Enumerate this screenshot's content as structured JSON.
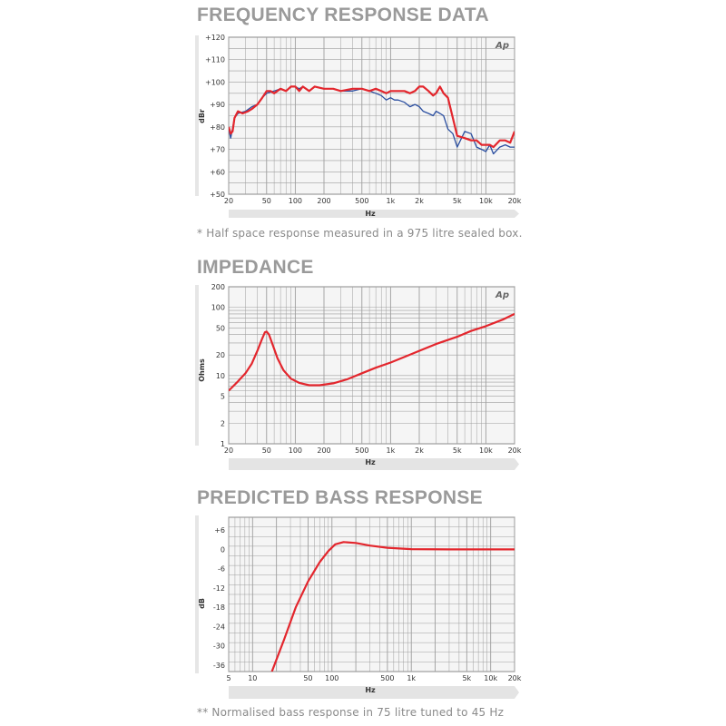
{
  "sections": [
    {
      "title": "FREQUENCY RESPONSE DATA",
      "note": "* Half space response measured in a 975 litre sealed box.",
      "logo": "Ap"
    },
    {
      "title": "IMPEDANCE",
      "note": "",
      "logo": "Ap"
    },
    {
      "title": "PREDICTED BASS RESPONSE",
      "note": "** Normalised bass response in 75 litre tuned to 45 Hz",
      "logo": ""
    }
  ],
  "colors": {
    "red": "#e3262d",
    "blue": "#2a4ea0",
    "grid": "#9e9e9e",
    "plot_bg": "#f5f5f5",
    "title": "#9a9a9a"
  },
  "chart_data": [
    {
      "type": "line",
      "title": "FREQUENCY RESPONSE DATA",
      "xlabel": "Hz",
      "ylabel": "dBr",
      "xscale": "log",
      "xlim": [
        20,
        20000
      ],
      "ylim": [
        50,
        120
      ],
      "xticks": [
        20,
        50,
        100,
        200,
        500,
        1000,
        2000,
        5000,
        10000,
        20000
      ],
      "xtick_labels": [
        "20",
        "50",
        "100",
        "200",
        "500",
        "1k",
        "2k",
        "5k",
        "10k",
        "20k"
      ],
      "yticks": [
        50,
        60,
        70,
        80,
        90,
        100,
        110,
        120
      ],
      "ytick_labels": [
        "+50",
        "+60",
        "+70",
        "+80",
        "+90",
        "+100",
        "+110",
        "+120"
      ],
      "grid": true,
      "series": [
        {
          "color": "#2a4ea0",
          "points": [
            [
              20,
              79
            ],
            [
              21,
              75
            ],
            [
              23,
              84
            ],
            [
              25,
              86
            ],
            [
              30,
              87
            ],
            [
              35,
              89
            ],
            [
              40,
              90
            ],
            [
              45,
              93
            ],
            [
              50,
              95
            ],
            [
              60,
              96
            ],
            [
              70,
              97
            ],
            [
              80,
              96
            ],
            [
              90,
              98
            ],
            [
              100,
              98
            ],
            [
              110,
              97
            ],
            [
              120,
              98
            ],
            [
              140,
              96
            ],
            [
              160,
              98
            ],
            [
              200,
              97
            ],
            [
              250,
              97
            ],
            [
              300,
              96
            ],
            [
              400,
              96
            ],
            [
              500,
              97
            ],
            [
              600,
              96
            ],
            [
              700,
              95
            ],
            [
              800,
              94
            ],
            [
              900,
              92
            ],
            [
              1000,
              93
            ],
            [
              1100,
              92
            ],
            [
              1200,
              92
            ],
            [
              1400,
              91
            ],
            [
              1600,
              89
            ],
            [
              1800,
              90
            ],
            [
              2000,
              89
            ],
            [
              2200,
              87
            ],
            [
              2500,
              86
            ],
            [
              2800,
              85
            ],
            [
              3000,
              87
            ],
            [
              3300,
              86
            ],
            [
              3600,
              85
            ],
            [
              4000,
              79
            ],
            [
              4500,
              77
            ],
            [
              5000,
              71
            ],
            [
              6000,
              78
            ],
            [
              7000,
              77
            ],
            [
              8000,
              71
            ],
            [
              9000,
              70
            ],
            [
              10000,
              69
            ],
            [
              11000,
              72
            ],
            [
              12000,
              68
            ],
            [
              14000,
              71
            ],
            [
              16000,
              72
            ],
            [
              18000,
              71
            ],
            [
              20000,
              71
            ]
          ]
        },
        {
          "color": "#e3262d",
          "points": [
            [
              20,
              80
            ],
            [
              21,
              77
            ],
            [
              22,
              78
            ],
            [
              23,
              84
            ],
            [
              25,
              87
            ],
            [
              28,
              86
            ],
            [
              32,
              87
            ],
            [
              35,
              88
            ],
            [
              40,
              90
            ],
            [
              45,
              93
            ],
            [
              50,
              96
            ],
            [
              55,
              96
            ],
            [
              60,
              95
            ],
            [
              70,
              97
            ],
            [
              80,
              96
            ],
            [
              90,
              98
            ],
            [
              100,
              98
            ],
            [
              110,
              96
            ],
            [
              120,
              98
            ],
            [
              140,
              96
            ],
            [
              160,
              98
            ],
            [
              200,
              97
            ],
            [
              250,
              97
            ],
            [
              300,
              96
            ],
            [
              400,
              97
            ],
            [
              500,
              97
            ],
            [
              600,
              96
            ],
            [
              700,
              97
            ],
            [
              800,
              96
            ],
            [
              900,
              95
            ],
            [
              1000,
              96
            ],
            [
              1200,
              96
            ],
            [
              1400,
              96
            ],
            [
              1600,
              95
            ],
            [
              1800,
              96
            ],
            [
              2000,
              98
            ],
            [
              2200,
              98
            ],
            [
              2500,
              96
            ],
            [
              2800,
              94
            ],
            [
              3000,
              95
            ],
            [
              3300,
              98
            ],
            [
              3600,
              95
            ],
            [
              4000,
              93
            ],
            [
              4500,
              84
            ],
            [
              5000,
              76
            ],
            [
              6000,
              75
            ],
            [
              7000,
              74
            ],
            [
              8000,
              74
            ],
            [
              9000,
              72
            ],
            [
              10000,
              72
            ],
            [
              11000,
              72
            ],
            [
              12000,
              71
            ],
            [
              14000,
              74
            ],
            [
              16000,
              74
            ],
            [
              18000,
              73
            ],
            [
              20000,
              78
            ]
          ]
        }
      ]
    },
    {
      "type": "line",
      "title": "IMPEDANCE",
      "xlabel": "Hz",
      "ylabel": "Ohms",
      "xscale": "log",
      "yscale": "log",
      "xlim": [
        20,
        20000
      ],
      "ylim": [
        1,
        200
      ],
      "xticks": [
        20,
        50,
        100,
        200,
        500,
        1000,
        2000,
        5000,
        10000,
        20000
      ],
      "xtick_labels": [
        "20",
        "50",
        "100",
        "200",
        "500",
        "1k",
        "2k",
        "5k",
        "10k",
        "20k"
      ],
      "yticks": [
        1,
        2,
        5,
        10,
        20,
        50,
        100,
        200
      ],
      "ytick_labels": [
        "1",
        "2",
        "5",
        "10",
        "20",
        "50",
        "100",
        "200"
      ],
      "grid": true,
      "series": [
        {
          "color": "#e3262d",
          "points": [
            [
              20,
              6
            ],
            [
              25,
              8.2
            ],
            [
              30,
              10.8
            ],
            [
              35,
              15
            ],
            [
              40,
              23
            ],
            [
              45,
              35
            ],
            [
              48,
              43
            ],
            [
              50,
              44
            ],
            [
              53,
              40
            ],
            [
              58,
              28
            ],
            [
              65,
              18
            ],
            [
              75,
              12
            ],
            [
              90,
              9
            ],
            [
              110,
              7.8
            ],
            [
              140,
              7.2
            ],
            [
              180,
              7.2
            ],
            [
              250,
              7.7
            ],
            [
              350,
              8.8
            ],
            [
              500,
              10.8
            ],
            [
              700,
              13
            ],
            [
              1000,
              15.5
            ],
            [
              1500,
              19.5
            ],
            [
              2000,
              23
            ],
            [
              3000,
              29
            ],
            [
              5000,
              37
            ],
            [
              7000,
              45
            ],
            [
              10000,
              53
            ],
            [
              15000,
              66
            ],
            [
              20000,
              80
            ]
          ]
        }
      ]
    },
    {
      "type": "line",
      "title": "PREDICTED BASS RESPONSE",
      "xlabel": "Hz",
      "ylabel": "dB",
      "xscale": "log",
      "xlim": [
        5,
        20000
      ],
      "ylim": [
        -38,
        10
      ],
      "xticks": [
        5,
        10,
        50,
        100,
        500,
        1000,
        5000,
        10000,
        20000
      ],
      "xtick_labels": [
        "5",
        "10",
        "50",
        "100",
        "500",
        "1k",
        "5k",
        "10k",
        "20k"
      ],
      "yticks": [
        -36,
        -30,
        -24,
        -18,
        -12,
        -6,
        0,
        6
      ],
      "ytick_labels": [
        "-36",
        "-30",
        "-24",
        "-18",
        "-12",
        "-6",
        "0",
        "+6"
      ],
      "grid": true,
      "series": [
        {
          "color": "#e3262d",
          "points": [
            [
              17.5,
              -38
            ],
            [
              25,
              -28
            ],
            [
              35,
              -18
            ],
            [
              50,
              -10
            ],
            [
              70,
              -4
            ],
            [
              90,
              -0.5
            ],
            [
              110,
              1.6
            ],
            [
              140,
              2.3
            ],
            [
              200,
              2.0
            ],
            [
              300,
              1.2
            ],
            [
              500,
              0.5
            ],
            [
              1000,
              0.1
            ],
            [
              3000,
              0
            ],
            [
              20000,
              0
            ]
          ]
        }
      ]
    }
  ]
}
